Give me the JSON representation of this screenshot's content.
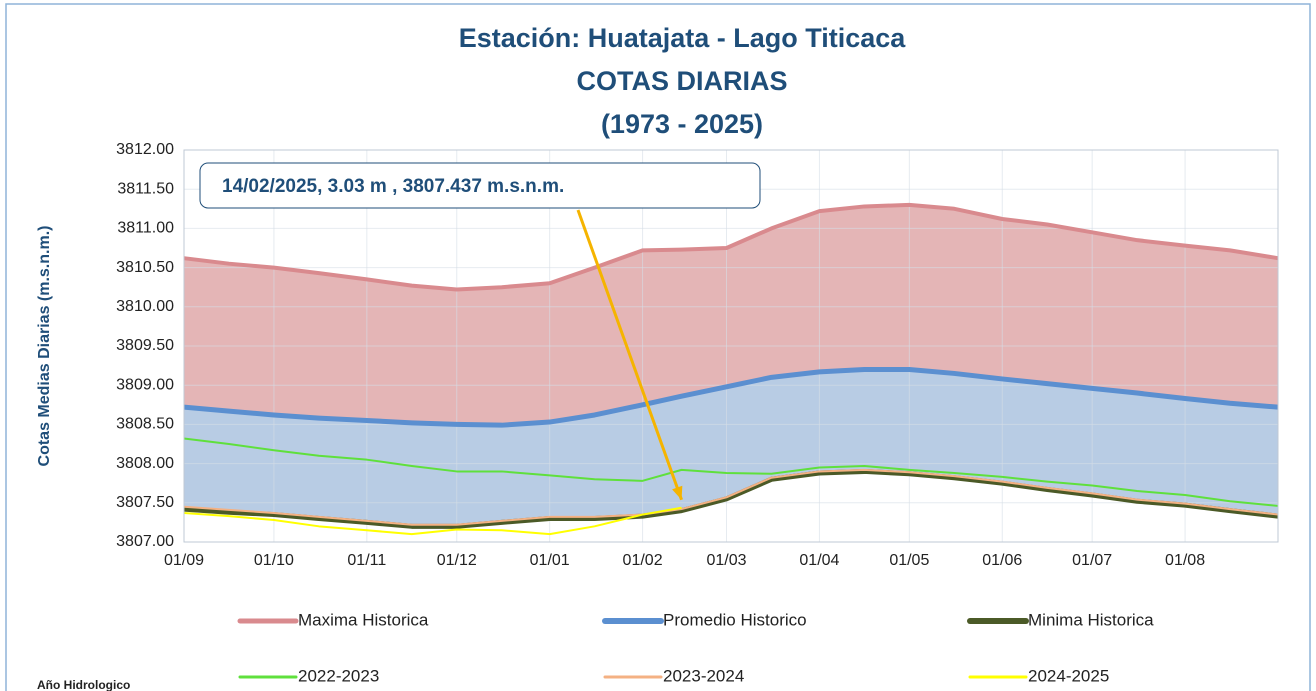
{
  "chart_data": {
    "type": "line",
    "title": [
      "Estación: Huatajata - Lago Titicaca",
      "COTAS DIARIAS",
      "(1973 - 2025)"
    ],
    "ylabel": "Cotas Medias Diarias (m.s.n.m.)",
    "annotation": "14/02/2025, 3.03 m , 3807.437 m.s.n.m.",
    "legend_title": "Año Hidrologico",
    "legend": "bottom",
    "grid": true,
    "x": [
      0,
      15,
      30,
      45,
      61,
      76,
      91,
      106,
      122,
      137,
      153,
      166,
      181,
      196,
      212,
      227,
      242,
      257,
      273,
      288,
      303,
      318,
      334,
      349,
      365
    ],
    "xlim": [
      0,
      365
    ],
    "xticks": [
      {
        "value": 0,
        "label": "01/09"
      },
      {
        "value": 30,
        "label": "01/10"
      },
      {
        "value": 61,
        "label": "01/11"
      },
      {
        "value": 91,
        "label": "01/12"
      },
      {
        "value": 122,
        "label": "01/01"
      },
      {
        "value": 153,
        "label": "01/02"
      },
      {
        "value": 181,
        "label": "01/03"
      },
      {
        "value": 212,
        "label": "01/04"
      },
      {
        "value": 242,
        "label": "01/05"
      },
      {
        "value": 273,
        "label": "01/06"
      },
      {
        "value": 303,
        "label": "01/07"
      },
      {
        "value": 334,
        "label": "01/08"
      }
    ],
    "ylim": [
      3807,
      3812
    ],
    "yticks": [
      {
        "value": 3807,
        "label": "3807.00"
      },
      {
        "value": 3807.5,
        "label": "3807.50"
      },
      {
        "value": 3808,
        "label": "3808.00"
      },
      {
        "value": 3808.5,
        "label": "3808.50"
      },
      {
        "value": 3809,
        "label": "3809.00"
      },
      {
        "value": 3809.5,
        "label": "3809.50"
      },
      {
        "value": 3810,
        "label": "3810.00"
      },
      {
        "value": 3810.5,
        "label": "3810.50"
      },
      {
        "value": 3811,
        "label": "3811.00"
      },
      {
        "value": 3811.5,
        "label": "3811.50"
      },
      {
        "value": 3812,
        "label": "3812.00"
      }
    ],
    "series": [
      {
        "name": "Maxima Historica",
        "color": "#d98a8e",
        "fill": "#e4b5b6",
        "width": 4,
        "values": [
          3810.62,
          3810.55,
          3810.5,
          3810.43,
          3810.35,
          3810.27,
          3810.22,
          3810.25,
          3810.3,
          3810.5,
          3810.72,
          3810.73,
          3810.75,
          3811.0,
          3811.22,
          3811.28,
          3811.3,
          3811.25,
          3811.12,
          3811.05,
          3810.95,
          3810.85,
          3810.78,
          3810.72,
          3810.62
        ]
      },
      {
        "name": "Promedio Historico",
        "color": "#5b8fd0",
        "fill": "#b8cce4",
        "width": 5,
        "values": [
          3808.72,
          3808.67,
          3808.62,
          3808.58,
          3808.55,
          3808.52,
          3808.5,
          3808.49,
          3808.53,
          3808.62,
          3808.75,
          3808.86,
          3808.98,
          3809.1,
          3809.17,
          3809.2,
          3809.2,
          3809.15,
          3809.08,
          3809.02,
          3808.96,
          3808.9,
          3808.83,
          3808.77,
          3808.72
        ]
      },
      {
        "name": "Minima Historica",
        "color": "#4b5a27",
        "fill": "#ffffff",
        "width": 5,
        "values": [
          3807.42,
          3807.38,
          3807.35,
          3807.3,
          3807.25,
          3807.2,
          3807.2,
          3807.25,
          3807.3,
          3807.3,
          3807.33,
          3807.4,
          3807.55,
          3807.8,
          3807.88,
          3807.9,
          3807.87,
          3807.82,
          3807.75,
          3807.67,
          3807.6,
          3807.52,
          3807.47,
          3807.4,
          3807.33
        ]
      },
      {
        "name": "2022-2023",
        "color": "#5fe03c",
        "width": 2,
        "values": [
          3808.32,
          3808.25,
          3808.17,
          3808.1,
          3808.05,
          3807.97,
          3807.9,
          3807.9,
          3807.85,
          3807.8,
          3807.78,
          3807.92,
          3807.88,
          3807.87,
          3807.95,
          3807.97,
          3807.92,
          3807.88,
          3807.83,
          3807.77,
          3807.72,
          3807.65,
          3807.6,
          3807.52,
          3807.46
        ]
      },
      {
        "name": "2023-2024",
        "color": "#f4b183",
        "width": 2,
        "values": [
          3807.45,
          3807.41,
          3807.37,
          3807.32,
          3807.27,
          3807.22,
          3807.22,
          3807.27,
          3807.32,
          3807.32,
          3807.35,
          3807.42,
          3807.57,
          3807.82,
          3807.9,
          3807.92,
          3807.89,
          3807.84,
          3807.77,
          3807.69,
          3807.62,
          3807.54,
          3807.49,
          3807.42,
          3807.35
        ]
      },
      {
        "name": "2024-2025",
        "color": "#ffff00",
        "width": 2,
        "values": [
          3807.37,
          3807.33,
          3807.28,
          3807.2,
          3807.15,
          3807.1,
          3807.16,
          3807.15,
          3807.1,
          3807.2,
          3807.35,
          3807.437,
          null,
          null,
          null,
          null,
          null,
          null,
          null,
          null,
          null,
          null,
          null,
          null,
          null
        ]
      }
    ]
  }
}
